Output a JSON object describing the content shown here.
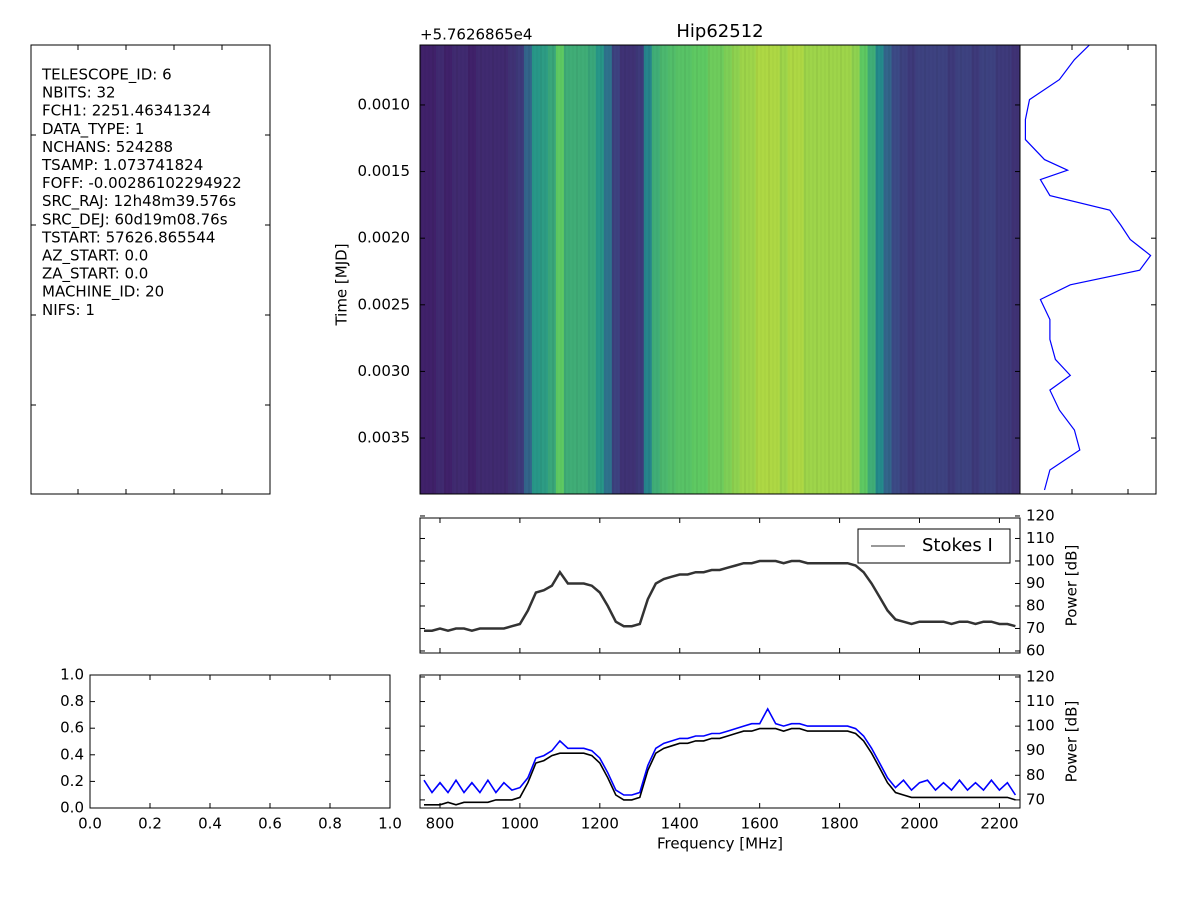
{
  "header": {
    "lines": [
      "TELESCOPE_ID:  6",
      "NBITS:  32",
      "FCH1:  2251.46341324",
      "DATA_TYPE:  1",
      "NCHANS:  524288",
      "TSAMP:  1.073741824",
      "FOFF:  -0.00286102294922",
      "SRC_RAJ:  12h48m39.576s",
      "SRC_DEJ:  60d19m08.76s",
      "TSTART:  57626.865544",
      "AZ_START:  0.0",
      "ZA_START:  0.0",
      "MACHINE_ID:  20",
      "NIFS:  1"
    ]
  },
  "chart_data": [
    {
      "type": "heatmap",
      "title": "Hip62512",
      "offset_label": "+5.7626865e4",
      "y_label": "Time [MJD]",
      "colormap": "viridis",
      "clim": [
        65,
        105
      ],
      "xlim": [
        750,
        2251.46
      ],
      "ylim": [
        0.00392,
        0.00055
      ],
      "yticks": [
        {
          "value": 0.001,
          "label": "0.0010"
        },
        {
          "value": 0.0015,
          "label": "0.0015"
        },
        {
          "value": 0.002,
          "label": "0.0020"
        },
        {
          "value": 0.0025,
          "label": "0.0025"
        },
        {
          "value": 0.003,
          "label": "0.0030"
        },
        {
          "value": 0.0035,
          "label": "0.0035"
        }
      ]
    },
    {
      "type": "line",
      "orientation": "vertical",
      "color": "#0000ff",
      "xlim": [
        0,
        1
      ],
      "ylim": [
        0.00392,
        0.00055
      ],
      "y": [
        0.00055,
        0.00066,
        0.00081,
        0.00096,
        0.00111,
        0.00126,
        0.00141,
        0.00149,
        0.00156,
        0.00168,
        0.00179,
        0.0019,
        0.00201,
        0.00213,
        0.00224,
        0.00235,
        0.00246,
        0.00261,
        0.00276,
        0.00291,
        0.00303,
        0.00314,
        0.00329,
        0.00344,
        0.00359,
        0.00374,
        0.00389
      ],
      "values": [
        0.51,
        0.4,
        0.29,
        0.07,
        0.04,
        0.04,
        0.18,
        0.35,
        0.15,
        0.22,
        0.66,
        0.74,
        0.81,
        0.96,
        0.88,
        0.37,
        0.15,
        0.22,
        0.22,
        0.26,
        0.37,
        0.22,
        0.29,
        0.4,
        0.44,
        0.22,
        0.18
      ]
    },
    {
      "type": "line",
      "y_label": "Power [dB]",
      "legend": "upper right",
      "xlim": [
        750,
        2251.46
      ],
      "ylim": [
        59.1,
        119.1
      ],
      "y2ticks": [
        60,
        70,
        80,
        90,
        100,
        110,
        120
      ],
      "xticks": [
        800,
        1000,
        1200,
        1400,
        1600,
        1800,
        2000,
        2200
      ],
      "x": [
        760,
        780,
        800,
        820,
        840,
        860,
        880,
        900,
        920,
        940,
        960,
        980,
        1000,
        1020,
        1040,
        1060,
        1080,
        1100,
        1120,
        1140,
        1160,
        1180,
        1200,
        1220,
        1240,
        1260,
        1280,
        1300,
        1320,
        1340,
        1360,
        1380,
        1400,
        1420,
        1440,
        1460,
        1480,
        1500,
        1520,
        1540,
        1560,
        1580,
        1600,
        1620,
        1640,
        1660,
        1680,
        1700,
        1720,
        1740,
        1760,
        1780,
        1800,
        1820,
        1840,
        1860,
        1880,
        1900,
        1920,
        1940,
        1960,
        1980,
        2000,
        2020,
        2040,
        2060,
        2080,
        2100,
        2120,
        2140,
        2160,
        2180,
        2200,
        2220,
        2240
      ],
      "series": [
        {
          "name": "Stokes I",
          "color": "#333333",
          "values": [
            69,
            69,
            70,
            69,
            70,
            70,
            69,
            70,
            70,
            70,
            70,
            71,
            72,
            78,
            86,
            87,
            89,
            95,
            90,
            90,
            90,
            89,
            86,
            80,
            73,
            71,
            71,
            72,
            83,
            90,
            92,
            93,
            94,
            94,
            95,
            95,
            96,
            96,
            97,
            98,
            99,
            99,
            100,
            100,
            100,
            99,
            100,
            100,
            99,
            99,
            99,
            99,
            99,
            99,
            98,
            95,
            90,
            84,
            78,
            74,
            73,
            72,
            73,
            73,
            73,
            73,
            72,
            73,
            73,
            72,
            73,
            73,
            72,
            72,
            71
          ]
        }
      ]
    },
    {
      "type": "line",
      "x_label": "Frequency [MHz]",
      "y_label": "Power [dB]",
      "xlim": [
        750,
        2251.46
      ],
      "ylim": [
        66.7,
        120.8
      ],
      "y2ticks": [
        70,
        80,
        90,
        100,
        110,
        120
      ],
      "xticks": [
        800,
        1000,
        1200,
        1400,
        1600,
        1800,
        2000,
        2200
      ],
      "x": [
        760,
        780,
        800,
        820,
        840,
        860,
        880,
        900,
        920,
        940,
        960,
        980,
        1000,
        1020,
        1040,
        1060,
        1080,
        1100,
        1120,
        1140,
        1160,
        1180,
        1200,
        1220,
        1240,
        1260,
        1280,
        1300,
        1320,
        1340,
        1360,
        1380,
        1400,
        1420,
        1440,
        1460,
        1480,
        1500,
        1520,
        1540,
        1560,
        1580,
        1600,
        1620,
        1640,
        1660,
        1680,
        1700,
        1720,
        1740,
        1760,
        1780,
        1800,
        1820,
        1840,
        1860,
        1880,
        1900,
        1920,
        1940,
        1960,
        1980,
        2000,
        2020,
        2040,
        2060,
        2080,
        2100,
        2120,
        2140,
        2160,
        2180,
        2200,
        2220,
        2240
      ],
      "series": [
        {
          "color": "#000000",
          "values": [
            68,
            68,
            68,
            69,
            68,
            69,
            69,
            69,
            69,
            70,
            70,
            70,
            71,
            77,
            85,
            86,
            88,
            89,
            89,
            89,
            89,
            88,
            85,
            79,
            72,
            70,
            70,
            71,
            82,
            89,
            91,
            92,
            93,
            93,
            94,
            94,
            95,
            95,
            96,
            97,
            98,
            98,
            99,
            99,
            99,
            98,
            99,
            99,
            98,
            98,
            98,
            98,
            98,
            98,
            97,
            94,
            89,
            83,
            77,
            73,
            72,
            71,
            71,
            71,
            71,
            71,
            71,
            71,
            71,
            71,
            71,
            71,
            71,
            71,
            70
          ]
        },
        {
          "color": "#0000ff",
          "values": [
            78,
            73,
            77,
            73,
            78,
            73,
            77,
            73,
            78,
            73,
            77,
            74,
            75,
            79,
            87,
            88,
            90,
            94,
            91,
            91,
            91,
            90,
            87,
            81,
            74,
            72,
            72,
            73,
            84,
            91,
            93,
            94,
            95,
            95,
            96,
            96,
            97,
            97,
            98,
            99,
            100,
            101,
            101,
            107,
            101,
            100,
            101,
            101,
            100,
            100,
            100,
            100,
            100,
            100,
            99,
            96,
            91,
            85,
            79,
            75,
            78,
            74,
            77,
            78,
            74,
            77,
            74,
            78,
            74,
            77,
            74,
            78,
            74,
            77,
            72
          ]
        }
      ]
    },
    {
      "type": "empty",
      "xlim": [
        0,
        1
      ],
      "ylim": [
        0,
        1
      ],
      "xticks": [
        {
          "value": 0,
          "label": "0.0"
        },
        {
          "value": 0.2,
          "label": "0.2"
        },
        {
          "value": 0.4,
          "label": "0.4"
        },
        {
          "value": 0.6,
          "label": "0.6"
        },
        {
          "value": 0.8,
          "label": "0.8"
        },
        {
          "value": 1,
          "label": "1.0"
        }
      ],
      "yticks": [
        {
          "value": 0,
          "label": "0.0"
        },
        {
          "value": 0.2,
          "label": "0.2"
        },
        {
          "value": 0.4,
          "label": "0.4"
        },
        {
          "value": 0.6,
          "label": "0.6"
        },
        {
          "value": 0.8,
          "label": "0.8"
        },
        {
          "value": 1,
          "label": "1.0"
        }
      ]
    }
  ]
}
